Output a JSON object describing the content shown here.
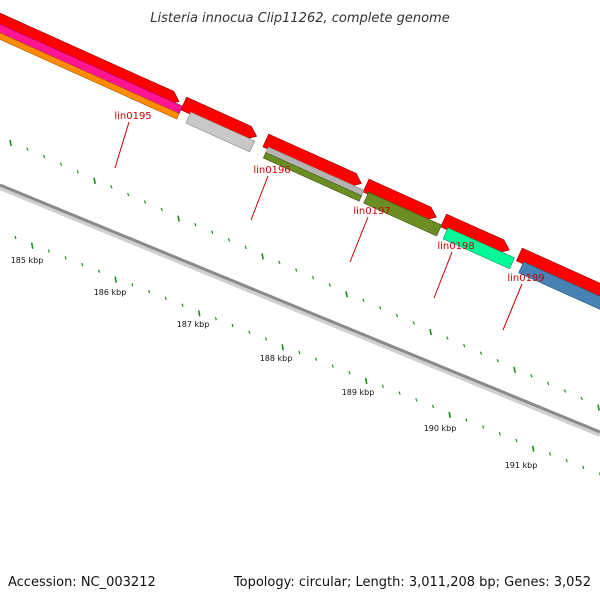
{
  "title": "Listeria innocua Clip11262, complete genome",
  "footer": {
    "accession": "Accession: NC_003212",
    "summary": "Topology: circular; Length: 3,011,208 bp; Genes: 3,052"
  },
  "colors": {
    "tick": "#1a8f1a",
    "label": "#cc0000",
    "cds": "#ff0000",
    "backbone": "#8a8a8a"
  },
  "scale_labels": [
    "185 kbp",
    "186 kbp",
    "187 kbp",
    "188 kbp",
    "189 kbp",
    "190 kbp",
    "191 kbp"
  ],
  "genes": [
    {
      "label": "lin0195",
      "color": "#ff1493"
    },
    {
      "label": "lin0196",
      "color": "#c8c8c8"
    },
    {
      "label": "lin0197",
      "color": "#6b8e23"
    },
    {
      "label": "lin0198",
      "color": "#6b8e23"
    },
    {
      "label": "lin0199",
      "color": "#00fa9a"
    }
  ],
  "extra_feature_colors": [
    "#ff8c00",
    "#4682b4"
  ]
}
